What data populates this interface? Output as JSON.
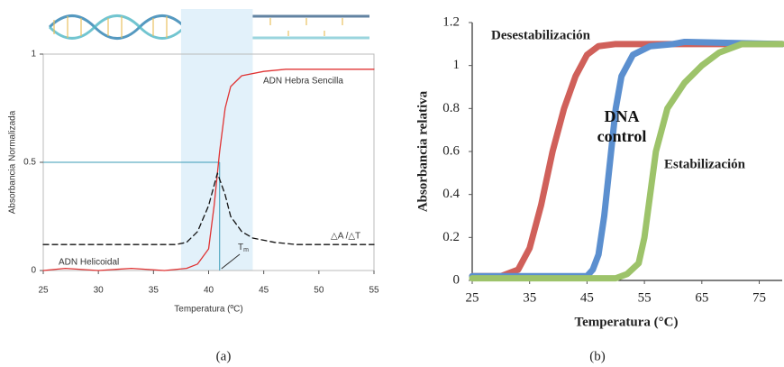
{
  "chart_data": [
    {
      "type": "line",
      "caption": "(a)",
      "x_label": "Temperatura (ºC)",
      "y_label": "Absorbancia Normalizada",
      "xlim": [
        25,
        55
      ],
      "xticks": [
        25,
        30,
        35,
        40,
        45,
        50,
        55
      ],
      "ylim": [
        0,
        1
      ],
      "yticks": [
        0,
        0.5,
        1
      ],
      "highlight": [
        37.5,
        44
      ],
      "reference": {
        "x": 41,
        "y": 0.5
      },
      "annotations": {
        "helix": "ADN Helicoidal",
        "tm": "T",
        "tm_sub": "m"
      },
      "series": [
        {
          "name": "ADN Hebra Sencilla",
          "color": "#e03434",
          "style": "solid",
          "x": [
            25,
            27,
            30,
            33,
            36,
            38,
            39,
            40,
            40.5,
            41,
            41.5,
            42,
            43,
            45,
            47,
            55
          ],
          "values": [
            0,
            0.01,
            0,
            0.01,
            0,
            0.01,
            0.03,
            0.1,
            0.3,
            0.55,
            0.75,
            0.85,
            0.9,
            0.92,
            0.93,
            0.93
          ]
        },
        {
          "name": "△A /△T",
          "color": "#111111",
          "style": "dashed",
          "x": [
            25,
            37,
            38,
            39,
            40,
            40.8,
            41.5,
            42,
            43,
            44,
            46,
            48,
            55
          ],
          "values": [
            0.12,
            0.12,
            0.13,
            0.18,
            0.3,
            0.45,
            0.35,
            0.25,
            0.18,
            0.15,
            0.13,
            0.12,
            0.12
          ]
        }
      ]
    },
    {
      "type": "line",
      "caption": "(b)",
      "x_label": "Temperatura (°C)",
      "y_label": "Absorbancia relativa",
      "xlim": [
        25,
        79
      ],
      "xticks": [
        25,
        35,
        45,
        55,
        65,
        75
      ],
      "ylim": [
        0,
        1.2
      ],
      "yticks": [
        0,
        0.2,
        0.4,
        0.6,
        0.8,
        1,
        1.2
      ],
      "series": [
        {
          "name": "Desestabilización",
          "color": "#d0605a",
          "x": [
            25,
            30,
            33,
            35,
            37,
            39,
            41,
            43,
            45,
            47,
            50,
            79
          ],
          "values": [
            0.02,
            0.02,
            0.05,
            0.15,
            0.35,
            0.6,
            0.8,
            0.95,
            1.05,
            1.09,
            1.1,
            1.1
          ]
        },
        {
          "name": "DNA control",
          "color": "#5b8fcf",
          "x": [
            25,
            45,
            46,
            47,
            48,
            49,
            50,
            51,
            53,
            56,
            60,
            62,
            79
          ],
          "values": [
            0.02,
            0.02,
            0.05,
            0.12,
            0.3,
            0.55,
            0.8,
            0.95,
            1.05,
            1.09,
            1.1,
            1.11,
            1.1
          ]
        },
        {
          "name": "Estabilización",
          "color": "#9dc36a",
          "x": [
            25,
            50,
            52,
            54,
            55,
            56,
            57,
            59,
            62,
            65,
            68,
            72,
            79
          ],
          "values": [
            0.01,
            0.01,
            0.03,
            0.08,
            0.2,
            0.4,
            0.6,
            0.8,
            0.92,
            1.0,
            1.06,
            1.1,
            1.1
          ]
        }
      ]
    }
  ]
}
